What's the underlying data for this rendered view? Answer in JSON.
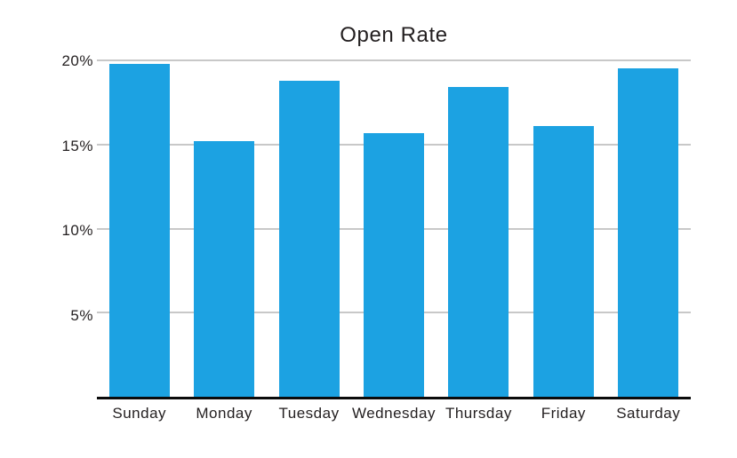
{
  "chart_data": {
    "type": "bar",
    "title": "Open Rate",
    "categories": [
      "Sunday",
      "Monday",
      "Tuesday",
      "Wednesday",
      "Thursday",
      "Friday",
      "Saturday"
    ],
    "values": [
      19.8,
      15.2,
      18.8,
      15.7,
      18.4,
      16.1,
      19.5
    ],
    "xlabel": "",
    "ylabel": "",
    "ylim": [
      0,
      20
    ],
    "yticks": [
      5,
      10,
      15,
      20
    ],
    "ytick_labels": [
      "5%",
      "10%",
      "15%",
      "20%"
    ],
    "grid": true,
    "legend": false,
    "colors": {
      "bar": "#1CA2E2",
      "gridline": "#C8C8C8",
      "axis": "#0B0B0B",
      "text": "#231F20",
      "background": "#FFFFFF"
    }
  }
}
